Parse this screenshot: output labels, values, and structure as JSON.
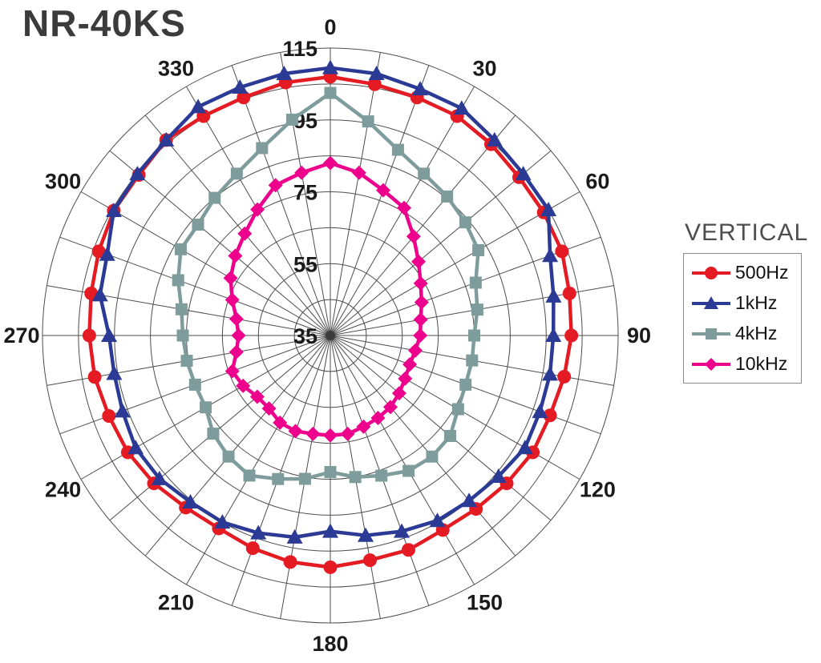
{
  "title": "NR-40KS",
  "legend": {
    "title": "VERTICAL",
    "entries": [
      {
        "label": "500Hz",
        "color": "#e51b24",
        "marker": "circle"
      },
      {
        "label": "1kHz",
        "color": "#2b3a94",
        "marker": "triangle"
      },
      {
        "label": "4kHz",
        "color": "#7e9c9b",
        "marker": "square"
      },
      {
        "label": "10kHz",
        "color": "#ec008c",
        "marker": "diamond"
      }
    ]
  },
  "colors": {
    "grid": "#4d4d4d",
    "axis_labels": "#1a1a1a",
    "title": "#3b3b3c",
    "legend_title": "#4d4d4d",
    "background": "#ffffff"
  },
  "chart_data": {
    "type": "line",
    "polar": true,
    "title": "NR-40KS",
    "legend_title": "VERTICAL",
    "angle_unit": "degrees clockwise from top",
    "angle_step_deg": 10,
    "angle_labels": [
      0,
      30,
      60,
      90,
      120,
      150,
      180,
      210,
      240,
      270,
      300,
      330
    ],
    "radial_axis": {
      "min": 35,
      "max": 115,
      "ring_step": 10,
      "tick_labels": [
        115,
        95,
        75,
        55,
        35
      ]
    },
    "series": [
      {
        "name": "500Hz",
        "color": "#e51b24",
        "marker": "circle",
        "values": [
          107,
          106,
          105.5,
          105.5,
          104.5,
          103.5,
          103.5,
          103.5,
          102.5,
          102,
          101,
          100,
          100,
          99,
          98,
          97.5,
          98.5,
          98.5,
          99.5,
          99,
          98,
          97,
          97.5,
          99,
          100,
          100.5,
          101.5,
          102,
          102.5,
          103.5,
          104.5,
          104.5,
          106,
          105.5,
          105.5,
          106.5
        ]
      },
      {
        "name": "1kHz",
        "color": "#2b3a94",
        "marker": "triangle",
        "values": [
          109.5,
          109,
          108,
          108,
          106,
          105,
          105,
          100,
          98,
          97,
          97,
          97,
          97.5,
          96,
          95,
          94.5,
          93,
          91.5,
          89.5,
          92,
          93.5,
          95,
          95.5,
          97,
          97.5,
          96.5,
          96,
          96.5,
          100,
          101,
          104.5,
          105,
          106,
          108.5,
          108.5,
          109
        ]
      },
      {
        "name": "4kHz",
        "color": "#7e9c9b",
        "marker": "square",
        "values": [
          102.5,
          95.5,
          90,
          87,
          85.5,
          84,
          82.5,
          78,
          76.5,
          75,
          75,
          75,
          76,
          78.5,
          79,
          78.5,
          76.5,
          75,
          73,
          75.5,
          77.5,
          80,
          79,
          77.5,
          75,
          75,
          75.5,
          76,
          77,
          80,
          83,
          83,
          85,
          87,
          90.5,
          96
        ]
      },
      {
        "name": "10kHz",
        "color": "#ec008c",
        "marker": "diamond",
        "values": [
          83,
          81,
          78,
          76,
          71,
          67,
          64,
          62,
          60.5,
          60,
          59,
          58.5,
          59,
          60,
          61,
          61.5,
          62,
          62.8,
          62.8,
          62.8,
          63.3,
          63,
          61.5,
          61.5,
          63,
          64,
          61.5,
          60.5,
          61.5,
          64,
          67,
          69.5,
          72,
          75.5,
          79.5,
          81
        ]
      }
    ]
  }
}
